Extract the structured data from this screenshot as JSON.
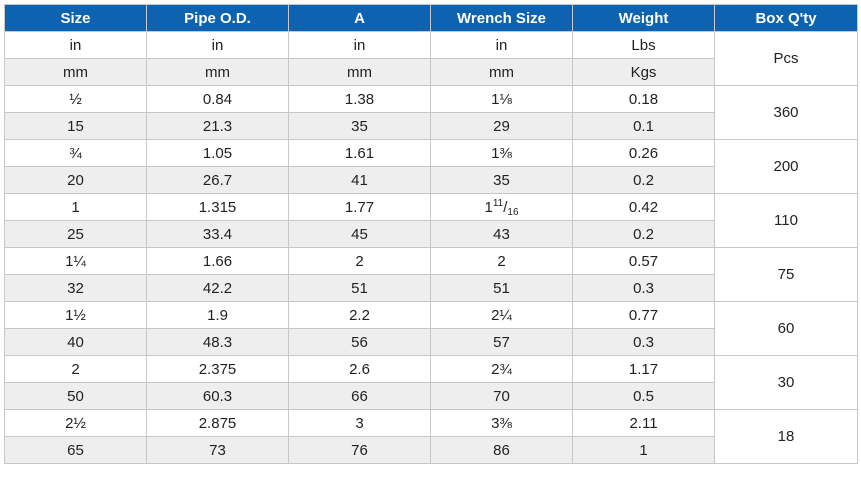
{
  "headers": [
    "Size",
    "Pipe O.D.",
    "A",
    "Wrench Size",
    "Weight",
    "Box Q'ty"
  ],
  "units": {
    "imperial": [
      "in",
      "in",
      "in",
      "in",
      "Lbs"
    ],
    "metric": [
      "mm",
      "mm",
      "mm",
      "mm",
      "Kgs"
    ],
    "box": "Pcs"
  },
  "rows": [
    {
      "in": [
        "½",
        "0.84",
        "1.38",
        "1⅛",
        "0.18"
      ],
      "mm": [
        "15",
        "21.3",
        "35",
        "29",
        "0.1"
      ],
      "box": "360"
    },
    {
      "in": [
        "¾",
        "1.05",
        "1.61",
        "1⅜",
        "0.26"
      ],
      "mm": [
        "20",
        "26.7",
        "41",
        "35",
        "0.2"
      ],
      "box": "200"
    },
    {
      "in": [
        "1",
        "1.315",
        "1.77",
        "",
        "0.42"
      ],
      "mm": [
        "25",
        "33.4",
        "45",
        "43",
        "0.2"
      ],
      "box": "110",
      "wrench_fraction": {
        "whole": "1",
        "num": "11",
        "den": "16"
      }
    },
    {
      "in": [
        "1¼",
        "1.66",
        "2",
        "2",
        "0.57"
      ],
      "mm": [
        "32",
        "42.2",
        "51",
        "51",
        "0.3"
      ],
      "box": "75"
    },
    {
      "in": [
        "1½",
        "1.9",
        "2.2",
        "2¼",
        "0.77"
      ],
      "mm": [
        "40",
        "48.3",
        "56",
        "57",
        "0.3"
      ],
      "box": "60"
    },
    {
      "in": [
        "2",
        "2.375",
        "2.6",
        "2¾",
        "1.17"
      ],
      "mm": [
        "50",
        "60.3",
        "66",
        "70",
        "0.5"
      ],
      "box": "30"
    },
    {
      "in": [
        "2½",
        "2.875",
        "3",
        "3⅜",
        "2.11"
      ],
      "mm": [
        "65",
        "73",
        "76",
        "86",
        "1"
      ],
      "box": "18"
    }
  ],
  "colors": {
    "header_bg": "#0d63b0",
    "header_text": "#ffffff",
    "stripe": "#eeeeee",
    "border": "#c7c7c7"
  }
}
